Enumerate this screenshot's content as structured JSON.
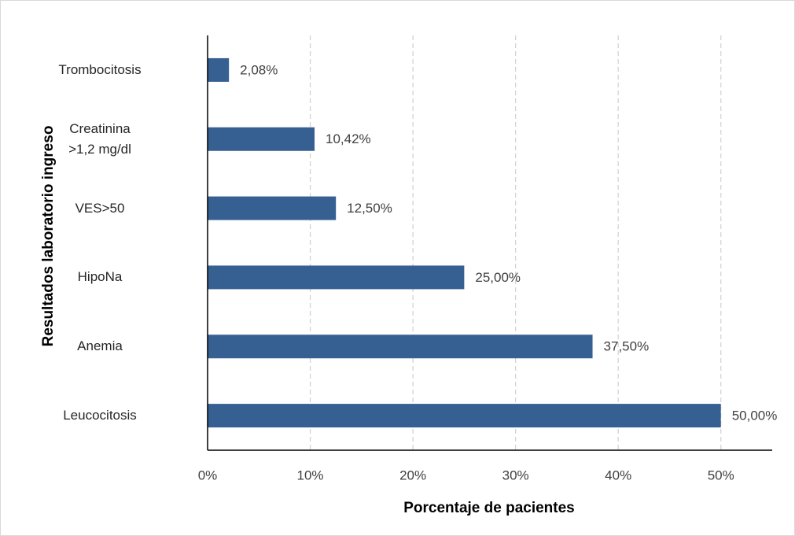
{
  "chart_data": {
    "type": "barh",
    "xlabel": "Porcentaje de pacientes",
    "ylabel": "Resultados laboratorio ingreso",
    "categories": [
      "Trombocitosis",
      "Creatinina\n>1,2 mg/dl",
      "VES>50",
      "HipoNa",
      "Anemia",
      "Leucocitosis"
    ],
    "values": [
      2.08,
      10.42,
      12.5,
      25,
      37.5,
      50
    ],
    "value_labels": [
      "2,08%",
      "10,42%",
      "12,50%",
      "25,00%",
      "37,50%",
      "50,00%"
    ],
    "color": "#376092",
    "xlim": [
      0,
      55
    ],
    "xticks": [
      {
        "value": 0,
        "label": "0%"
      },
      {
        "value": 10,
        "label": "10%"
      },
      {
        "value": 20,
        "label": "20%"
      },
      {
        "value": 30,
        "label": "30%"
      },
      {
        "value": 40,
        "label": "40%"
      },
      {
        "value": 50,
        "label": "50%"
      }
    ],
    "grid": true
  }
}
